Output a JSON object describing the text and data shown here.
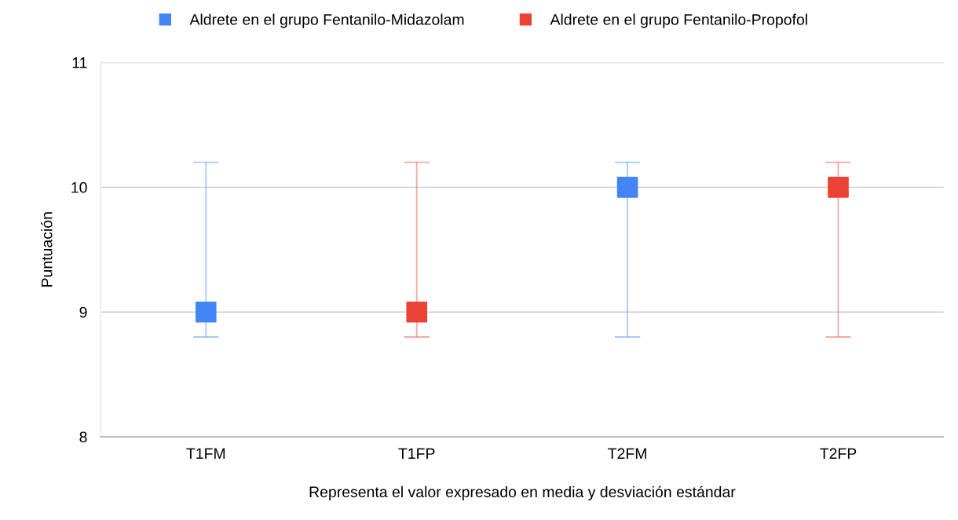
{
  "chart_data": {
    "type": "scatter",
    "xlabel": "Representa el valor expresado en media y desviación estándar",
    "ylabel": "Puntuación",
    "categories": [
      "T1FM",
      "T1FP",
      "T2FM",
      "T2FP"
    ],
    "series": [
      {
        "name": "Aldrete en el grupo Fentanilo-Midazolam",
        "color": "#4285f4",
        "values": [
          9,
          null,
          10,
          null
        ],
        "errors": [
          [
            8.8,
            10.2
          ],
          null,
          [
            8.8,
            10.2
          ],
          null
        ]
      },
      {
        "name": "Aldrete en el grupo Fentanilo-Propofol",
        "color": "#ea4335",
        "values": [
          null,
          9,
          null,
          10
        ],
        "errors": [
          null,
          [
            8.8,
            10.2
          ],
          null,
          [
            8.8,
            10.2
          ]
        ]
      }
    ],
    "ylim": [
      8,
      11
    ],
    "yticks": [
      8,
      9,
      10,
      11
    ],
    "grid": "y",
    "legend": "top",
    "marker": "square"
  }
}
